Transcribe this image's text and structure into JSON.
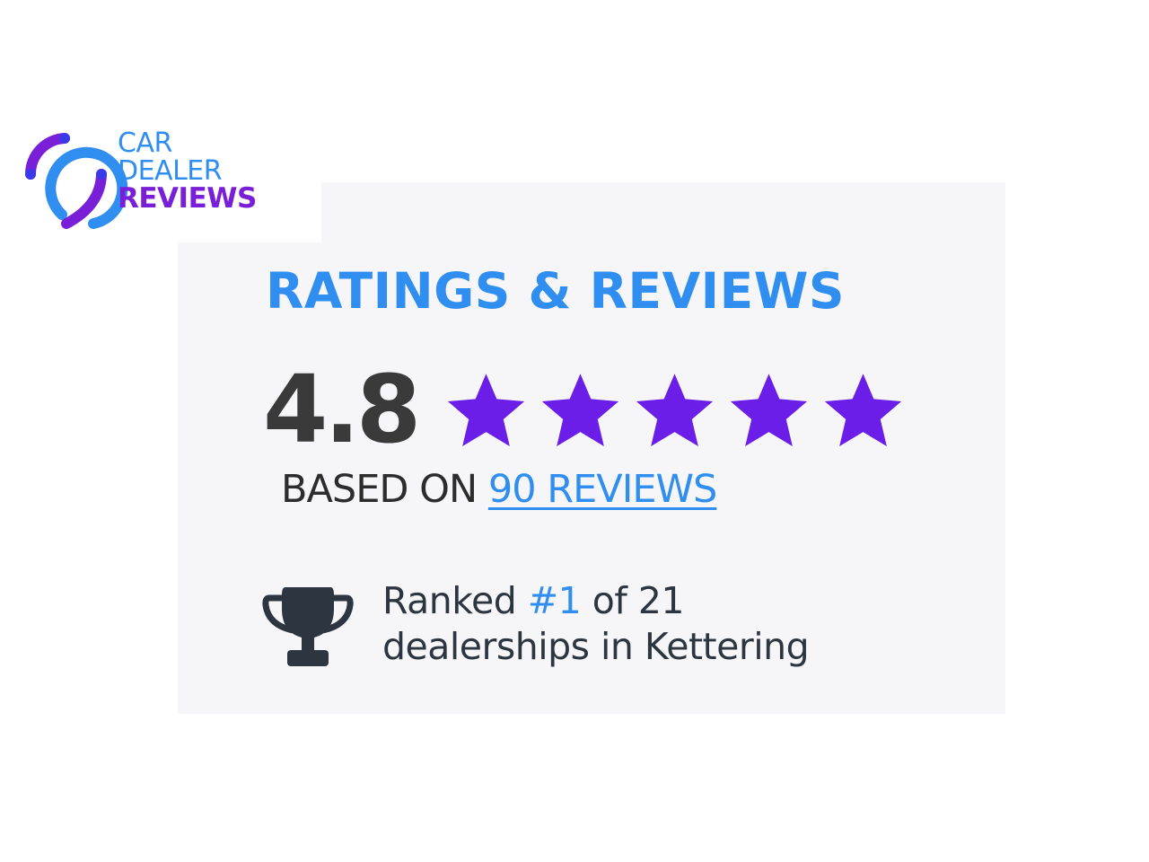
{
  "logo": {
    "line1": "CAR",
    "line2": "DEALER",
    "line3": "REVIEWS",
    "colors": {
      "blue": "#2f8ef0",
      "purple": "#7a1fd8"
    }
  },
  "widget": {
    "heading": "RATINGS & REVIEWS",
    "score": "4.8",
    "stars": {
      "filled": 5,
      "max": 5,
      "color": "#6a1ee8"
    },
    "based_on_prefix": "BASED ON",
    "reviews_link": "90 REVIEWS",
    "rank": {
      "prefix": "Ranked",
      "position": "#1",
      "suffix": "of 21",
      "line2": "dealerships in Kettering",
      "icon": "trophy-icon"
    }
  }
}
